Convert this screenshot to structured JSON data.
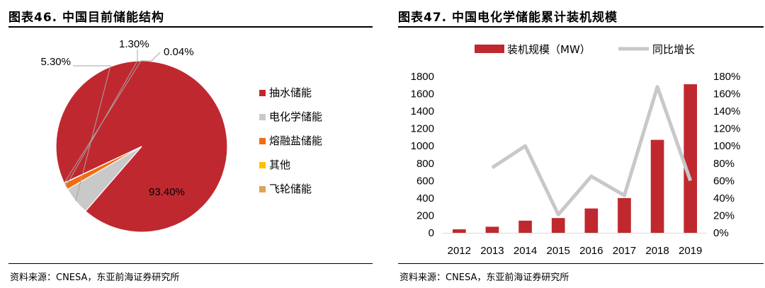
{
  "chart_data": [
    {
      "type": "pie",
      "title": "图表46.  中国目前储能结构",
      "legend_position": "right",
      "slices": [
        {
          "label": "抽水储能",
          "value": 93.4,
          "value_label": "93.40%",
          "color": "#C0282F"
        },
        {
          "label": "电化学储能",
          "value": 5.3,
          "value_label": "5.30%",
          "color": "#C9C9C9"
        },
        {
          "label": "熔融盐储能",
          "value": 1.3,
          "value_label": "1.30%",
          "color": "#F26B0F"
        },
        {
          "label": "其他",
          "value": 0.04,
          "value_label": "0.04%",
          "color": "#FFC000"
        },
        {
          "label": "飞轮储能",
          "value": 0.0,
          "value_label": "",
          "color": "#D9A55B"
        }
      ],
      "source": "资料来源：CNESA，东亚前海证券研究所"
    },
    {
      "type": "bar",
      "title": "图表47.  中国电化学储能累计装机规模",
      "legend_position": "top",
      "categories": [
        "2012",
        "2013",
        "2014",
        "2015",
        "2016",
        "2017",
        "2018",
        "2019"
      ],
      "series": [
        {
          "name": "装机规模（MW）",
          "type": "bar",
          "axis": "left",
          "color": "#C0282F",
          "values": [
            40,
            70,
            140,
            170,
            280,
            400,
            1070,
            1710
          ]
        },
        {
          "name": "同比增长",
          "type": "line",
          "axis": "right",
          "color": "#C8C8C8",
          "values": [
            null,
            75,
            100,
            21,
            65,
            43,
            168,
            60
          ]
        }
      ],
      "yleft": {
        "min": 0,
        "max": 1800,
        "ticks": [
          "0",
          "200",
          "400",
          "600",
          "800",
          "1000",
          "1200",
          "1400",
          "1600",
          "1800"
        ]
      },
      "yright": {
        "min": 0,
        "max": 180,
        "ticks": [
          "0%",
          "20%",
          "40%",
          "60%",
          "80%",
          "100%",
          "120%",
          "140%",
          "160%",
          "180%"
        ]
      },
      "grid": false,
      "source": "资料来源：CNESA，东亚前海证券研究所"
    }
  ]
}
